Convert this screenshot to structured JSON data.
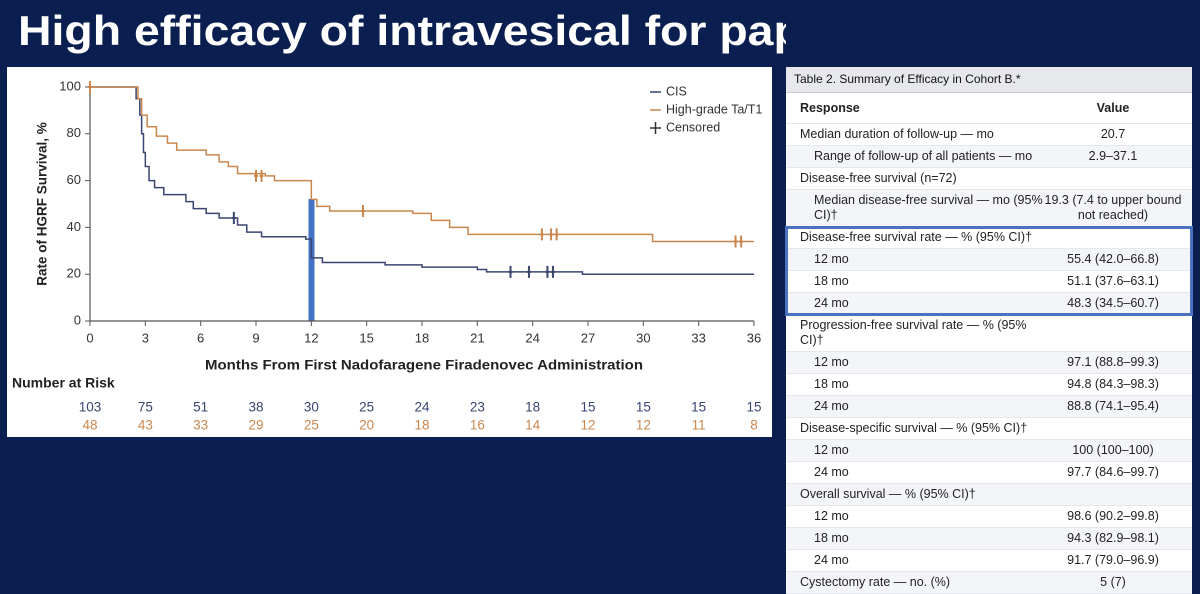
{
  "slide_title": "High efficacy of intravesical for papillary-only",
  "chart_data": {
    "type": "line",
    "xlabel": "Months From First Nadofaragene Firadenovec Administration",
    "ylabel": "Rate of HGRF Survival, %",
    "xlim": [
      0,
      36
    ],
    "ylim": [
      0,
      100
    ],
    "xticks": [
      0,
      3,
      6,
      9,
      12,
      15,
      18,
      21,
      24,
      27,
      30,
      33,
      36
    ],
    "yticks": [
      0,
      20,
      40,
      60,
      80,
      100
    ],
    "legend_censored": "Censored",
    "series": [
      {
        "name": "CIS",
        "color": "#3a4670",
        "x": [
          0,
          2.5,
          2.5,
          2.7,
          2.7,
          2.8,
          2.8,
          2.9,
          2.9,
          3,
          3,
          3.2,
          3.2,
          3.5,
          3.5,
          4,
          4,
          5.2,
          5.2,
          5.6,
          5.6,
          6.3,
          6.3,
          7,
          7,
          8,
          8,
          8.5,
          8.5,
          9.3,
          9.3,
          11.7,
          11.7,
          12,
          12,
          12.6,
          12.6,
          16,
          16,
          18,
          18,
          21,
          21,
          21.5,
          21.5,
          26.7,
          26.7,
          36
        ],
        "values": [
          100,
          100,
          95,
          95,
          88,
          88,
          80,
          80,
          72,
          72,
          66,
          66,
          60,
          60,
          57,
          57,
          54,
          54,
          51,
          51,
          48,
          48,
          46,
          46,
          44,
          44,
          41,
          41,
          38,
          38,
          36,
          36,
          35,
          35,
          27,
          27,
          25,
          25,
          24,
          24,
          23,
          23,
          22,
          22,
          21,
          21,
          20,
          20
        ],
        "censored": {
          "x": [
            0,
            7.8,
            22.8,
            23.8,
            24.8,
            25.1
          ],
          "values": [
            100,
            44,
            21,
            21,
            21,
            21
          ]
        }
      },
      {
        "name": "High-grade Ta/T1",
        "color": "#c9874f",
        "x": [
          0,
          2.6,
          2.6,
          2.8,
          2.8,
          3.1,
          3.1,
          3.6,
          3.6,
          4.2,
          4.2,
          4.7,
          4.7,
          6.3,
          6.3,
          7,
          7,
          7.5,
          7.5,
          8,
          8,
          9.5,
          9.5,
          10,
          10,
          12,
          12,
          12.3,
          12.3,
          13,
          13,
          17.5,
          17.5,
          18.5,
          18.5,
          19.5,
          19.5,
          20.5,
          20.5,
          30.5,
          30.5,
          36
        ],
        "values": [
          100,
          100,
          95,
          95,
          88,
          88,
          83,
          83,
          79,
          79,
          76,
          76,
          73,
          73,
          71,
          71,
          68,
          68,
          66,
          66,
          63,
          63,
          62,
          62,
          60,
          60,
          52,
          52,
          49,
          49,
          47,
          47,
          46,
          46,
          43,
          43,
          40,
          40,
          37,
          37,
          34,
          34
        ],
        "censored": {
          "x": [
            0,
            9,
            9.3,
            14.8,
            24.5,
            25,
            25.3,
            35,
            35.3
          ],
          "values": [
            100,
            62,
            62,
            47,
            37,
            37,
            37,
            34,
            34
          ]
        }
      }
    ]
  },
  "risk_table": {
    "title": "Number at Risk",
    "rows": [
      [
        "103",
        "75",
        "51",
        "38",
        "30",
        "25",
        "24",
        "23",
        "18",
        "15",
        "15",
        "15",
        "15"
      ],
      [
        "48",
        "43",
        "33",
        "29",
        "25",
        "20",
        "18",
        "16",
        "14",
        "12",
        "12",
        "11",
        "8"
      ]
    ]
  },
  "table": {
    "caption": "Table 2. Summary of Efficacy in Cohort B.*",
    "columns": [
      "Response",
      "Value"
    ],
    "sections": [
      {
        "label": "Median duration of follow-up — mo",
        "value": "20.7",
        "items": [
          {
            "label": "Range of follow-up of all patients — mo",
            "value": "2.9–37.1"
          }
        ]
      },
      {
        "label": "Disease-free survival (n=72)",
        "items": [
          {
            "label": "Median disease-free survival — mo (95% CI)†",
            "value": "19.3 (7.4 to upper bound not reached)"
          }
        ]
      },
      {
        "label": "Disease-free survival rate — % (95% CI)†",
        "items": [
          {
            "label": "12 mo",
            "value": "55.4 (42.0–66.8)"
          },
          {
            "label": "18 mo",
            "value": "51.1 (37.6–63.1)"
          },
          {
            "label": "24 mo",
            "value": "48.3 (34.5–60.7)"
          }
        ]
      },
      {
        "label": "Progression-free survival rate — % (95% CI)†",
        "items": [
          {
            "label": "12 mo",
            "value": "97.1 (88.8–99.3)"
          },
          {
            "label": "18 mo",
            "value": "94.8 (84.3–98.3)"
          },
          {
            "label": "24 mo",
            "value": "88.8 (74.1–95.4)"
          }
        ]
      },
      {
        "label": "Disease-specific survival — % (95% CI)†",
        "items": [
          {
            "label": "12 mo",
            "value": "100 (100–100)"
          },
          {
            "label": "24 mo",
            "value": "97.7 (84.6–99.7)"
          }
        ]
      },
      {
        "label": "Overall survival — % (95% CI)†",
        "items": [
          {
            "label": "12 mo",
            "value": "98.6 (90.2–99.8)"
          },
          {
            "label": "18 mo",
            "value": "94.3 (82.9–98.1)"
          },
          {
            "label": "24 mo",
            "value": "91.7 (79.0–96.9)"
          }
        ]
      },
      {
        "label": "Cystectomy rate — no. (%)",
        "value": "5 (7)"
      }
    ]
  }
}
